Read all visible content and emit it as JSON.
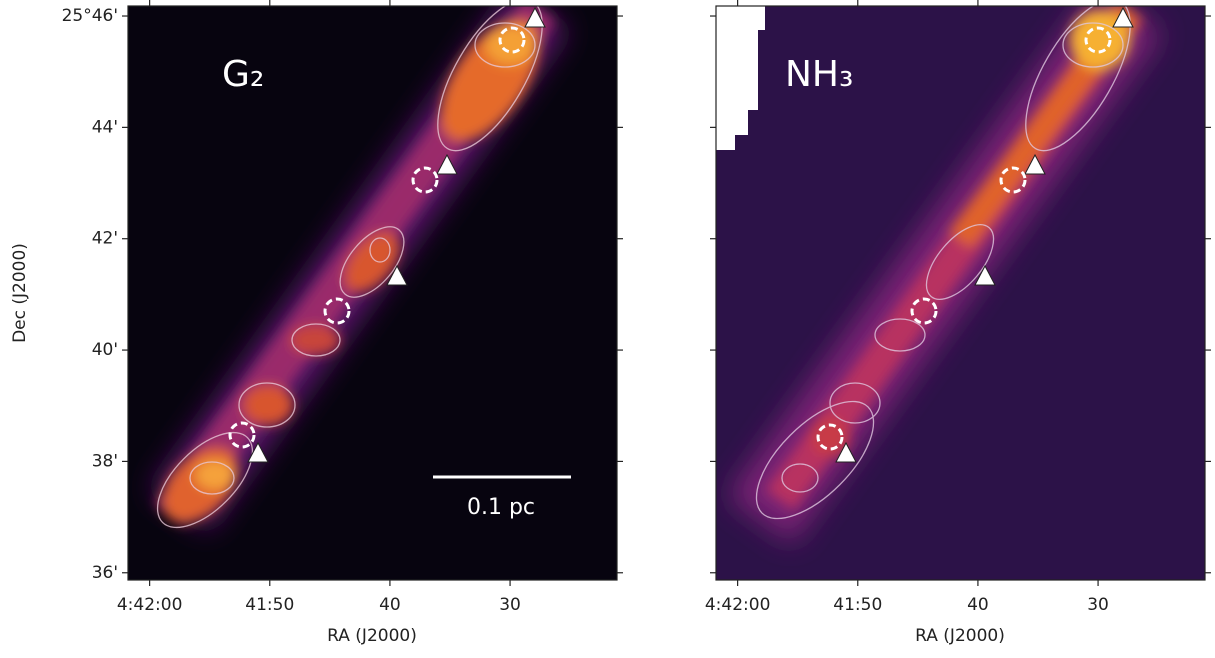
{
  "chart_data": [
    {
      "type": "image",
      "label": "G₂",
      "scale_bar": "0.1 pc",
      "xlabel": "RA (J2000)",
      "ylabel": "Dec (J2000)",
      "xlim": [
        16921.8,
        16881.1
      ],
      "xticks": [
        {
          "value": 16920,
          "label": "4:42:00"
        },
        {
          "value": 16910,
          "label": "41:50"
        },
        {
          "value": 16900,
          "label": "40"
        },
        {
          "value": 16890,
          "label": "30"
        }
      ],
      "ylim": [
        35.87,
        46.18
      ],
      "yticks": [
        {
          "value": 36,
          "label": "36'"
        },
        {
          "value": 38,
          "label": "38'"
        },
        {
          "value": 40,
          "label": "40'"
        },
        {
          "value": 42,
          "label": "42'"
        },
        {
          "value": 44,
          "label": "44'"
        },
        {
          "value": 46,
          "label": "25°46'"
        }
      ],
      "show_ytick_labels": true
    },
    {
      "type": "image",
      "label": "NH₃",
      "xlabel": "RA (J2000)",
      "xlim": [
        16921.8,
        16881.1
      ],
      "xticks": [
        {
          "value": 16920,
          "label": "4:42:00"
        },
        {
          "value": 16910,
          "label": "41:50"
        },
        {
          "value": 16900,
          "label": "40"
        },
        {
          "value": 16890,
          "label": "30"
        }
      ],
      "ylim": [
        35.87,
        46.18
      ],
      "yticks": [
        36,
        38,
        40,
        42,
        44,
        46
      ],
      "show_ytick_labels": false
    }
  ]
}
